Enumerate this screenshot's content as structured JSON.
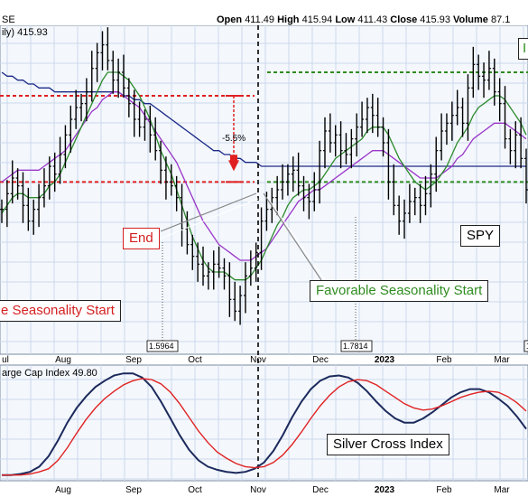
{
  "chart_data": [
    {
      "type": "candlestick",
      "symbol_fragment": "SE",
      "legend_text": "ily) 415.93",
      "quote": {
        "open_label": "Open",
        "open": "411.49",
        "high_label": "High",
        "high": "415.94",
        "low_label": "Low",
        "low": "411.43",
        "close_label": "Close",
        "close": "415.93",
        "volume_label": "Volume",
        "volume": "87.1"
      },
      "x_labels": [
        "ul",
        "Aug",
        "Sep",
        "Oct",
        "Nov",
        "Dec",
        "2023",
        "Feb",
        "Mar"
      ],
      "ylim": [
        346,
        430
      ],
      "levels": {
        "upper_red": 412,
        "lower_red": 390,
        "upper_green": 418,
        "lower_green": 390
      },
      "percent_change_label": "-5.5%",
      "annotations": {
        "end": "End",
        "seasonality_start_left": "e Seasonality Start",
        "favorable_start": "Favorable Seasonality Start",
        "symbol": "SPY",
        "flag": "I"
      },
      "value_tags": [
        "1.5964",
        "1.7814",
        "1"
      ],
      "series": {
        "close": [
          383,
          387,
          391,
          389,
          384,
          380,
          383,
          386,
          389,
          394,
          392,
          397,
          402,
          406,
          409,
          410,
          413,
          419,
          423,
          425,
          421,
          416,
          418,
          414,
          410,
          406,
          404,
          406,
          402,
          398,
          393,
          390,
          389,
          386,
          378,
          374,
          371,
          369,
          366,
          367,
          369,
          368,
          366,
          360,
          357,
          361,
          366,
          368,
          372,
          380,
          383,
          386,
          388,
          390,
          392,
          393,
          389,
          386,
          385,
          388,
          398,
          403,
          400,
          402,
          398,
          397,
          401,
          404,
          406,
          409,
          407,
          404,
          400,
          390,
          384,
          380,
          382,
          385,
          386,
          384,
          387,
          392,
          398,
          403,
          405,
          407,
          409,
          405,
          414,
          420,
          417,
          416,
          419,
          413,
          410,
          401,
          398,
          402,
          396,
          388
        ],
        "sma_short": [
          382,
          384,
          386,
          387,
          387,
          386,
          386,
          386,
          387,
          389,
          390,
          392,
          395,
          398,
          401,
          404,
          407,
          410,
          413,
          416,
          418,
          418,
          418,
          417,
          416,
          414,
          412,
          409,
          406,
          402,
          398,
          395,
          392,
          388,
          384,
          380,
          376,
          373,
          370,
          368,
          367,
          367,
          367,
          366,
          365,
          365,
          365,
          366,
          368,
          370,
          373,
          376,
          379,
          381,
          384,
          386,
          387,
          388,
          388,
          389,
          390,
          392,
          394,
          396,
          397,
          398,
          399,
          400,
          401,
          403,
          404,
          404,
          404,
          402,
          399,
          396,
          394,
          392,
          390,
          389,
          388,
          389,
          390,
          392,
          394,
          397,
          400,
          402,
          404,
          407,
          409,
          410,
          411,
          412,
          412,
          411,
          409,
          407,
          405,
          402
        ],
        "sma_mid": [
          390,
          391,
          392,
          393,
          393,
          393,
          393,
          393,
          394,
          395,
          396,
          397,
          398,
          400,
          402,
          404,
          406,
          408,
          409,
          411,
          412,
          413,
          413,
          412,
          411,
          410,
          409,
          407,
          405,
          403,
          401,
          399,
          397,
          395,
          392,
          389,
          386,
          383,
          380,
          378,
          376,
          374,
          373,
          372,
          371,
          370,
          370,
          370,
          371,
          372,
          373,
          375,
          377,
          379,
          381,
          383,
          385,
          386,
          387,
          388,
          388,
          389,
          390,
          391,
          392,
          393,
          394,
          395,
          396,
          397,
          398,
          398,
          398,
          397,
          396,
          395,
          394,
          393,
          392,
          391,
          391,
          391,
          391,
          392,
          393,
          394,
          396,
          397,
          399,
          401,
          402,
          403,
          404,
          405,
          405,
          405,
          404,
          403,
          402,
          401
        ],
        "sma_long": [
          418,
          417,
          417,
          416,
          416,
          415,
          415,
          414,
          414,
          414,
          413,
          413,
          413,
          413,
          413,
          413,
          413,
          413,
          413,
          413,
          413,
          413,
          413,
          412,
          412,
          411,
          411,
          410,
          410,
          409,
          408,
          407,
          406,
          405,
          404,
          403,
          402,
          401,
          400,
          399,
          398,
          398,
          397,
          397,
          396,
          396,
          395,
          395,
          395,
          394,
          394,
          394,
          394,
          394,
          394,
          394,
          394,
          394,
          394,
          394,
          394,
          394,
          394,
          394,
          394,
          394,
          394,
          394,
          394,
          394,
          394,
          394,
          394,
          394,
          394,
          394,
          394,
          394,
          394,
          394,
          394,
          394,
          394,
          394,
          394,
          394,
          394,
          394,
          394,
          394,
          394,
          394,
          394,
          394,
          394,
          394,
          394,
          394,
          394,
          394
        ]
      }
    },
    {
      "type": "line",
      "title": "arge Cap Index 49.80",
      "x_labels": [
        "Aug",
        "Sep",
        "Oct",
        "Nov",
        "Dec",
        "2023",
        "Feb",
        "Mar"
      ],
      "annotation": "Silver Cross Index",
      "ylim": [
        0,
        100
      ],
      "series": [
        {
          "color": "#1c2a5c",
          "values": [
            2,
            2,
            3,
            5,
            10,
            20,
            35,
            52,
            66,
            77,
            86,
            92,
            97,
            99,
            99,
            95,
            86,
            72,
            56,
            40,
            26,
            16,
            10,
            7,
            5,
            4,
            5,
            8,
            14,
            25,
            40,
            57,
            72,
            84,
            92,
            96,
            97,
            95,
            90,
            82,
            72,
            63,
            56,
            52,
            52,
            56,
            62,
            69,
            76,
            81,
            84,
            84,
            81,
            75,
            68,
            58,
            46
          ]
        },
        {
          "color": "#e02222",
          "values": [
            2,
            2,
            2,
            3,
            5,
            8,
            16,
            28,
            42,
            55,
            66,
            75,
            82,
            88,
            92,
            94,
            93,
            89,
            81,
            70,
            57,
            44,
            33,
            24,
            18,
            13,
            10,
            9,
            10,
            14,
            21,
            31,
            43,
            56,
            68,
            78,
            86,
            91,
            93,
            92,
            88,
            82,
            76,
            70,
            66,
            64,
            65,
            68,
            72,
            76,
            79,
            81,
            82,
            81,
            77,
            71,
            63
          ]
        }
      ]
    }
  ]
}
